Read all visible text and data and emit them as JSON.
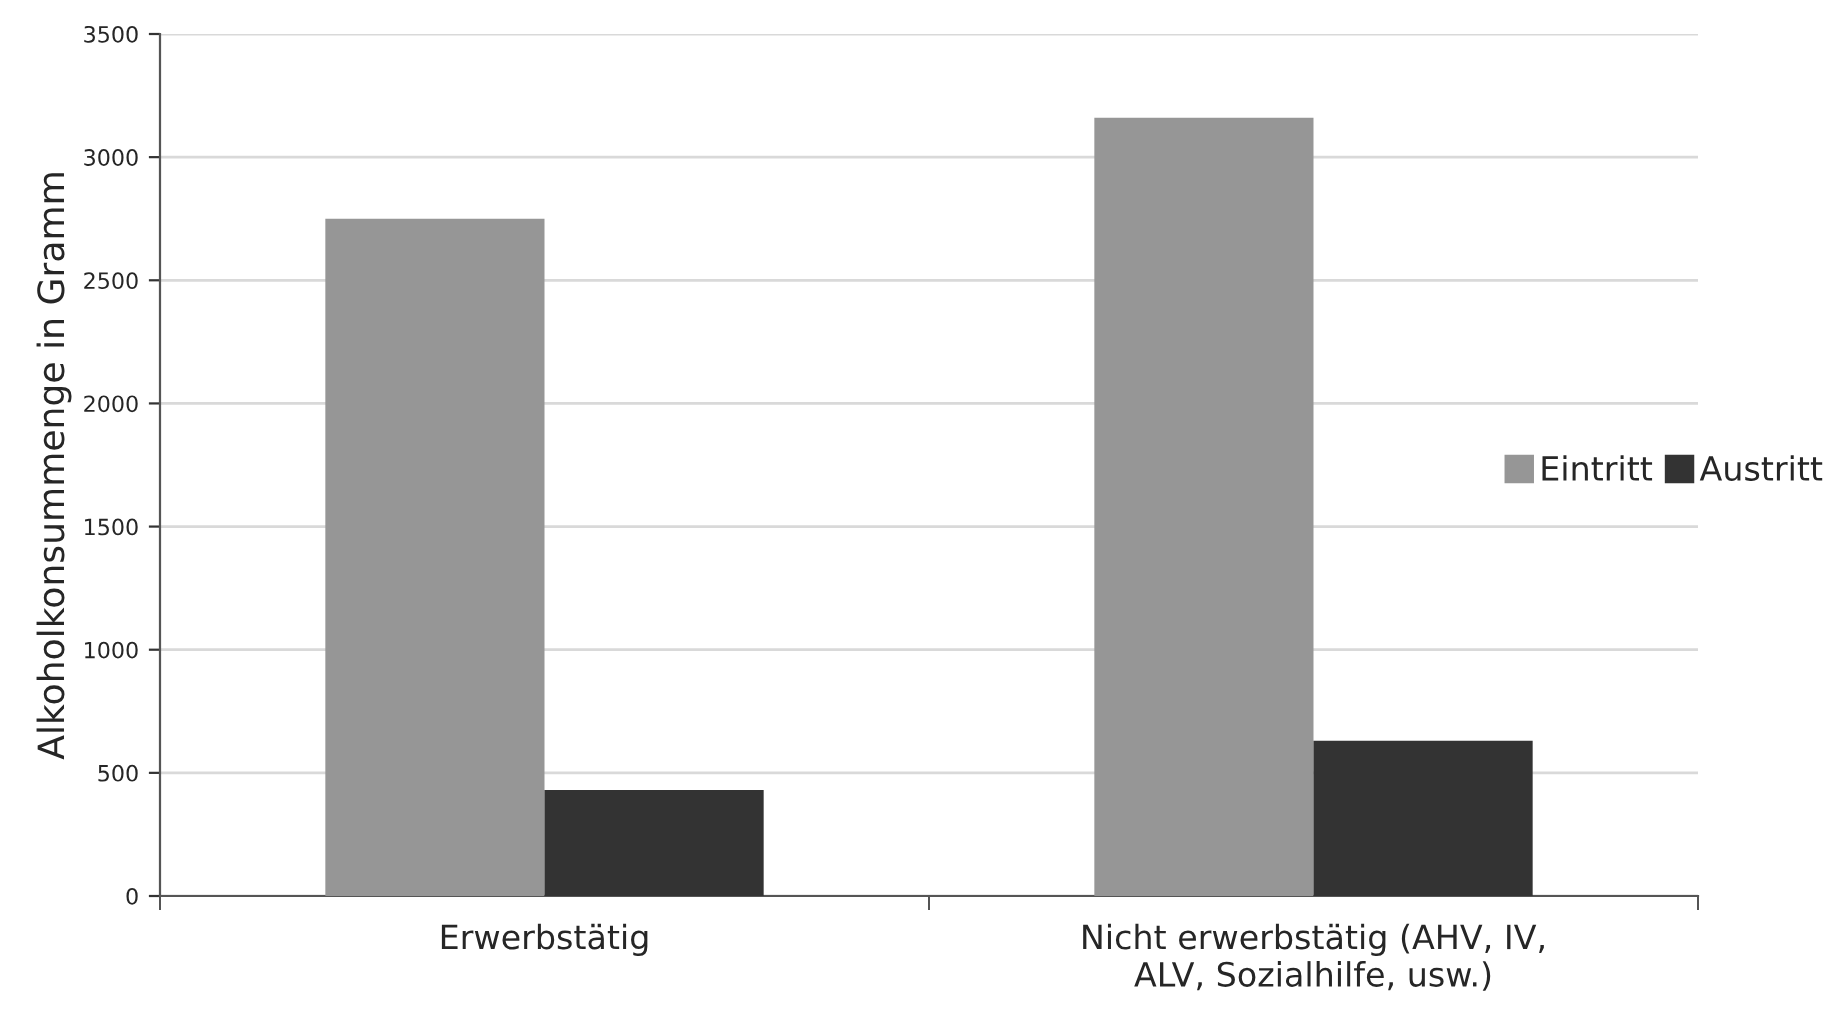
{
  "chart_data": {
    "type": "bar",
    "ylabel": "Alkoholkonsummenge in Gramm",
    "categories": [
      "Erwerbstätig",
      "Nicht erwerbstätig (AHV, IV,\nALV, Sozialhilfe, usw.)"
    ],
    "series": [
      {
        "name": "Eintritt",
        "color": "#969696",
        "values": [
          2750,
          3160
        ]
      },
      {
        "name": "Austritt",
        "color": "#333333",
        "values": [
          430,
          630
        ]
      }
    ],
    "ylim": [
      0,
      3500
    ],
    "yticks": [
      0,
      500,
      1000,
      1500,
      2000,
      2500,
      3000,
      3500
    ],
    "grid": "y",
    "legend": "right"
  }
}
